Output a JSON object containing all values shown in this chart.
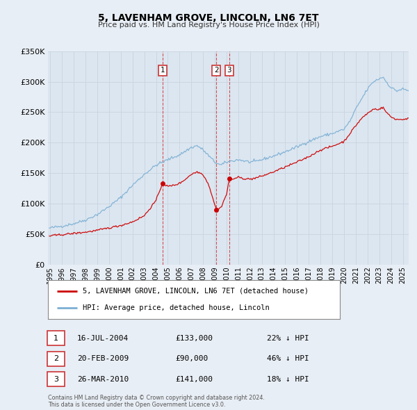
{
  "title": "5, LAVENHAM GROVE, LINCOLN, LN6 7ET",
  "subtitle": "Price paid vs. HM Land Registry's House Price Index (HPI)",
  "legend_label_red": "5, LAVENHAM GROVE, LINCOLN, LN6 7ET (detached house)",
  "legend_label_blue": "HPI: Average price, detached house, Lincoln",
  "footer_line1": "Contains HM Land Registry data © Crown copyright and database right 2024.",
  "footer_line2": "This data is licensed under the Open Government Licence v3.0.",
  "transactions": [
    {
      "label": "1",
      "date": "16-JUL-2004",
      "price": "£133,000",
      "pct": "22% ↓ HPI"
    },
    {
      "label": "2",
      "date": "20-FEB-2009",
      "price": "£90,000",
      "pct": "46% ↓ HPI"
    },
    {
      "label": "3",
      "date": "26-MAR-2010",
      "price": "£141,000",
      "pct": "18% ↓ HPI"
    }
  ],
  "transaction_dates_decimal": [
    2004.54,
    2009.13,
    2010.23
  ],
  "transaction_prices": [
    133000,
    90000,
    141000
  ],
  "red_color": "#cc0000",
  "blue_color": "#7bafd4",
  "background_color": "#e8eef5",
  "plot_bg_color": "#dce6f0",
  "grid_color": "#c8d4e0",
  "label_box_color": "#cc3333",
  "ylim": [
    0,
    350000
  ],
  "yticks": [
    0,
    50000,
    100000,
    150000,
    200000,
    250000,
    300000,
    350000
  ],
  "xlim_start": 1994.8,
  "xlim_end": 2025.5,
  "xticks": [
    1995,
    1996,
    1997,
    1998,
    1999,
    2000,
    2001,
    2002,
    2003,
    2004,
    2005,
    2006,
    2007,
    2008,
    2009,
    2010,
    2011,
    2012,
    2013,
    2014,
    2015,
    2016,
    2017,
    2018,
    2019,
    2020,
    2021,
    2022,
    2023,
    2024,
    2025
  ]
}
